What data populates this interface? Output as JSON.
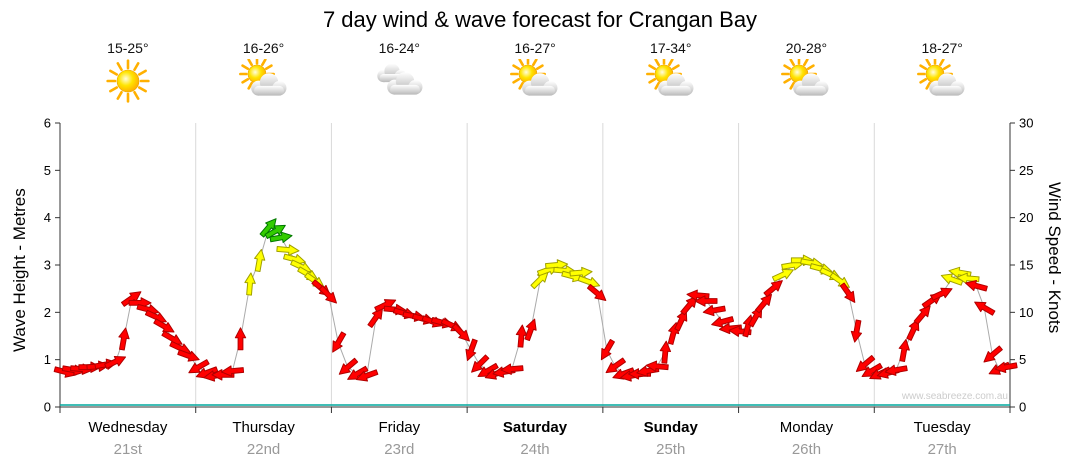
{
  "title": "7 day wind & wave forecast for Crangan Bay",
  "watermark": "www.seabreeze.com.au",
  "axes": {
    "left_title": "Wave Height - Metres",
    "right_title": "Wind Speed - Knots",
    "left_ticks": [
      0,
      1,
      2,
      3,
      4,
      5,
      6
    ],
    "right_ticks": [
      0,
      5,
      10,
      15,
      20,
      25,
      30
    ]
  },
  "days": [
    {
      "name": "Wednesday",
      "date": "21st",
      "temp": "15-25°",
      "icon": "sunny",
      "bold": false
    },
    {
      "name": "Thursday",
      "date": "22nd",
      "temp": "16-26°",
      "icon": "partly",
      "bold": false
    },
    {
      "name": "Friday",
      "date": "23rd",
      "temp": "16-24°",
      "icon": "cloudy",
      "bold": false
    },
    {
      "name": "Saturday",
      "date": "24th",
      "temp": "16-27°",
      "icon": "partly",
      "bold": true
    },
    {
      "name": "Sunday",
      "date": "25th",
      "temp": "17-34°",
      "icon": "partly",
      "bold": true
    },
    {
      "name": "Monday",
      "date": "26th",
      "temp": "20-28°",
      "icon": "partly",
      "bold": false
    },
    {
      "name": "Tuesday",
      "date": "27th",
      "temp": "18-27°",
      "icon": "partly",
      "bold": false
    }
  ],
  "chart_data": {
    "type": "scatter",
    "title": "7 day wind & wave forecast for Crangan Bay",
    "x_categories": [
      "Wednesday 21st",
      "Thursday 22nd",
      "Friday 23rd",
      "Saturday 24th",
      "Sunday 25th",
      "Monday 26th",
      "Tuesday 27th"
    ],
    "y_left": {
      "label": "Wave Height - Metres",
      "range": [
        0,
        6
      ]
    },
    "y_right": {
      "label": "Wind Speed - Knots",
      "range": [
        0,
        30
      ]
    },
    "grid": "vertical day separators only",
    "legend_position": "none",
    "series_description": "3-hourly wind forecast arrows plotted against the right axis (knots); arrow colour shows strength band, arrow rotation shows direction; grey line connects points",
    "color_bands": {
      "red": "0-12.9 knots",
      "yellow": "13-17.4 knots",
      "green": "17.5+ knots"
    },
    "band_thresholds": {
      "yellow_min": 13,
      "green_min": 17.5
    },
    "colors": {
      "red": "#ff0000",
      "yellow": "#ffff00",
      "green": "#33cc00",
      "line": "#aaaaaa",
      "separator": "#d9d9d9",
      "baseline": "#00a89d",
      "axis": "#333333"
    },
    "point_format": [
      "day_offset_0_to_7",
      "wind_speed_knots",
      "arrow_rotation_deg_cw_from_east"
    ],
    "points": [
      [
        0.04,
        3.7,
        15
      ],
      [
        0.1,
        3.9,
        10
      ],
      [
        0.16,
        4.0,
        5
      ],
      [
        0.22,
        4.2,
        0
      ],
      [
        0.28,
        4.3,
        -5
      ],
      [
        0.34,
        4.5,
        -10
      ],
      [
        0.41,
        4.8,
        -25
      ],
      [
        0.47,
        7.2,
        -80
      ],
      [
        0.53,
        11.5,
        -35
      ],
      [
        0.59,
        11.0,
        0
      ],
      [
        0.65,
        10.3,
        15
      ],
      [
        0.71,
        9.5,
        25
      ],
      [
        0.77,
        8.5,
        30
      ],
      [
        0.83,
        7.2,
        30
      ],
      [
        0.89,
        6.2,
        25
      ],
      [
        0.95,
        5.4,
        20
      ],
      [
        1.02,
        4.2,
        150
      ],
      [
        1.08,
        3.6,
        160
      ],
      [
        1.14,
        3.3,
        170
      ],
      [
        1.2,
        3.4,
        180
      ],
      [
        1.27,
        3.8,
        175
      ],
      [
        1.33,
        7.2,
        -90
      ],
      [
        1.4,
        13.0,
        -85
      ],
      [
        1.47,
        15.5,
        -80
      ],
      [
        1.54,
        19.0,
        -50
      ],
      [
        1.59,
        18.6,
        -30
      ],
      [
        1.63,
        17.9,
        -10
      ],
      [
        1.68,
        16.6,
        5
      ],
      [
        1.73,
        15.6,
        15
      ],
      [
        1.78,
        14.8,
        25
      ],
      [
        1.83,
        14.0,
        30
      ],
      [
        1.88,
        13.3,
        35
      ],
      [
        1.93,
        12.5,
        40
      ],
      [
        1.98,
        11.8,
        45
      ],
      [
        2.05,
        6.8,
        120
      ],
      [
        2.12,
        4.2,
        140
      ],
      [
        2.19,
        3.5,
        150
      ],
      [
        2.26,
        3.3,
        160
      ],
      [
        2.33,
        9.5,
        -55
      ],
      [
        2.4,
        10.8,
        -25
      ],
      [
        2.47,
        10.3,
        5
      ],
      [
        2.54,
        9.9,
        15
      ],
      [
        2.61,
        9.6,
        10
      ],
      [
        2.68,
        9.3,
        15
      ],
      [
        2.75,
        9.0,
        20
      ],
      [
        2.82,
        8.9,
        15
      ],
      [
        2.89,
        8.6,
        25
      ],
      [
        2.96,
        7.8,
        45
      ],
      [
        3.03,
        6.0,
        110
      ],
      [
        3.09,
        4.5,
        135
      ],
      [
        3.15,
        3.8,
        150
      ],
      [
        3.21,
        3.5,
        160
      ],
      [
        3.27,
        3.7,
        170
      ],
      [
        3.33,
        4.0,
        175
      ],
      [
        3.4,
        7.5,
        -85
      ],
      [
        3.47,
        8.2,
        -70
      ],
      [
        3.54,
        13.5,
        -45
      ],
      [
        3.6,
        14.5,
        -20
      ],
      [
        3.66,
        15.0,
        -5
      ],
      [
        3.72,
        14.4,
        5
      ],
      [
        3.78,
        13.8,
        15
      ],
      [
        3.84,
        14.2,
        -5
      ],
      [
        3.9,
        13.2,
        20
      ],
      [
        3.96,
        12.0,
        40
      ],
      [
        4.03,
        6.0,
        120
      ],
      [
        4.09,
        4.3,
        145
      ],
      [
        4.15,
        3.5,
        160
      ],
      [
        4.21,
        3.3,
        170
      ],
      [
        4.27,
        3.5,
        180
      ],
      [
        4.33,
        3.8,
        170
      ],
      [
        4.4,
        4.3,
        -175
      ],
      [
        4.46,
        5.8,
        -85
      ],
      [
        4.52,
        7.8,
        -75
      ],
      [
        4.58,
        9.2,
        -65
      ],
      [
        4.64,
        10.8,
        -50
      ],
      [
        4.7,
        11.8,
        185
      ],
      [
        4.76,
        11.2,
        180
      ],
      [
        4.82,
        10.2,
        170
      ],
      [
        4.88,
        9.0,
        165
      ],
      [
        4.94,
        8.3,
        175
      ],
      [
        5.01,
        8.0,
        185
      ],
      [
        5.07,
        8.6,
        -75
      ],
      [
        5.13,
        9.6,
        -60
      ],
      [
        5.19,
        11.0,
        -50
      ],
      [
        5.26,
        12.6,
        -40
      ],
      [
        5.33,
        14.0,
        -25
      ],
      [
        5.4,
        15.0,
        -10
      ],
      [
        5.47,
        15.5,
        0
      ],
      [
        5.54,
        15.2,
        10
      ],
      [
        5.61,
        14.6,
        15
      ],
      [
        5.68,
        14.0,
        25
      ],
      [
        5.75,
        13.3,
        35
      ],
      [
        5.81,
        12.0,
        55
      ],
      [
        5.87,
        8.0,
        100
      ],
      [
        5.93,
        4.5,
        140
      ],
      [
        5.98,
        3.8,
        150
      ],
      [
        6.04,
        3.5,
        155
      ],
      [
        6.1,
        3.6,
        165
      ],
      [
        6.16,
        3.9,
        170
      ],
      [
        6.22,
        6.0,
        -80
      ],
      [
        6.29,
        8.2,
        -65
      ],
      [
        6.36,
        9.8,
        -50
      ],
      [
        6.43,
        11.3,
        -35
      ],
      [
        6.5,
        12.0,
        -25
      ],
      [
        6.57,
        13.5,
        200
      ],
      [
        6.63,
        14.2,
        190
      ],
      [
        6.69,
        13.6,
        185
      ],
      [
        6.75,
        12.8,
        195
      ],
      [
        6.81,
        10.5,
        210
      ],
      [
        6.87,
        5.5,
        140
      ],
      [
        6.92,
        4.0,
        155
      ],
      [
        6.97,
        4.2,
        170
      ]
    ]
  }
}
